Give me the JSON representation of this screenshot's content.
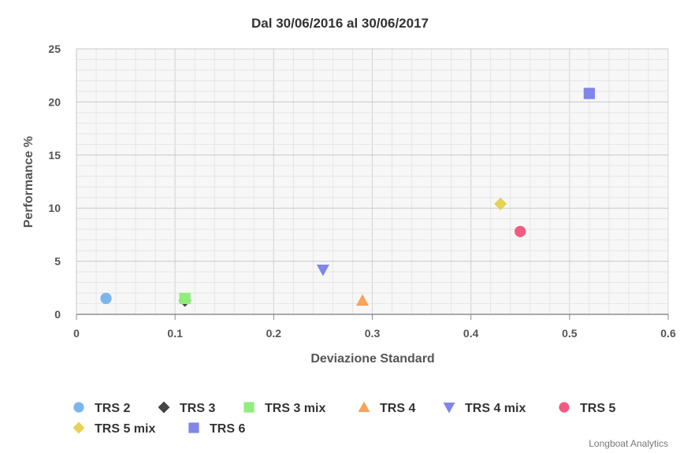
{
  "chart_data": {
    "type": "scatter",
    "title": "Dal 30/06/2016 al 30/06/2017",
    "xlabel": "Deviazione Standard",
    "ylabel": "Performance %",
    "xlim": [
      0,
      0.6
    ],
    "ylim": [
      0,
      25
    ],
    "xticks": [
      "0",
      "0.1",
      "0.2",
      "0.3",
      "0.4",
      "0.5",
      "0.6"
    ],
    "yticks": [
      "0",
      "5",
      "10",
      "15",
      "20",
      "25"
    ],
    "grid": true,
    "legend_position": "bottom-left",
    "credit": "Longboat Analytics",
    "series": [
      {
        "name": "TRS 2",
        "marker": "circle",
        "color": "#7cb5ec",
        "points": [
          {
            "x": 0.03,
            "y": 1.5
          }
        ]
      },
      {
        "name": "TRS 3",
        "marker": "diamond",
        "color": "#434348",
        "points": [
          {
            "x": 0.11,
            "y": 1.3
          }
        ]
      },
      {
        "name": "TRS 3 mix",
        "marker": "square",
        "color": "#90ed7d",
        "points": [
          {
            "x": 0.11,
            "y": 1.5
          }
        ]
      },
      {
        "name": "TRS 4",
        "marker": "triangle",
        "color": "#f7a35c",
        "points": [
          {
            "x": 0.29,
            "y": 1.3
          }
        ]
      },
      {
        "name": "TRS 4 mix",
        "marker": "triangle-down",
        "color": "#8085e9",
        "points": [
          {
            "x": 0.25,
            "y": 4.2
          }
        ]
      },
      {
        "name": "TRS 5",
        "marker": "circle",
        "color": "#f15c80",
        "points": [
          {
            "x": 0.45,
            "y": 7.8
          }
        ]
      },
      {
        "name": "TRS 5 mix",
        "marker": "diamond",
        "color": "#e4d354",
        "points": [
          {
            "x": 0.43,
            "y": 10.4
          }
        ]
      },
      {
        "name": "TRS 6",
        "marker": "square",
        "color": "#8085e9",
        "points": [
          {
            "x": 0.52,
            "y": 20.8
          }
        ]
      }
    ]
  }
}
